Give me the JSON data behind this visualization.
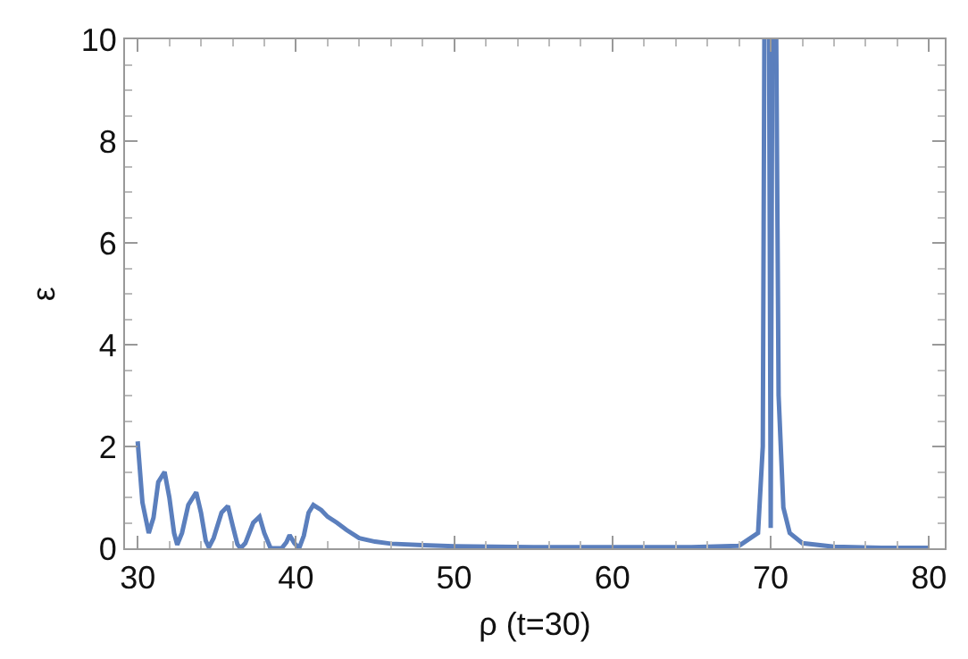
{
  "chart_data": {
    "type": "line",
    "xlabel": "ρ (t=30)",
    "ylabel": "ε",
    "x": [
      30.0,
      30.3,
      30.7,
      31.0,
      31.3,
      31.7,
      32.0,
      32.3,
      32.5,
      32.8,
      33.2,
      33.7,
      34.0,
      34.3,
      34.5,
      34.8,
      35.3,
      35.7,
      36.0,
      36.3,
      36.5,
      36.8,
      37.3,
      37.7,
      38.0,
      38.4,
      39.1,
      39.4,
      39.6,
      39.9,
      40.2,
      40.5,
      40.8,
      41.1,
      41.6,
      42.0,
      42.6,
      43.2,
      44,
      45,
      46,
      48,
      50,
      55,
      60,
      65,
      68,
      69.2,
      69.5,
      69.6,
      69.9,
      70.0,
      70.1,
      70.35,
      70.5,
      70.8,
      71.2,
      72,
      74,
      77,
      80
    ],
    "series": [
      {
        "color": "#5b7fbd",
        "values": [
          2.1,
          0.9,
          0.3,
          0.6,
          1.3,
          1.5,
          1.0,
          0.3,
          0.07,
          0.3,
          0.85,
          1.1,
          0.7,
          0.15,
          0.02,
          0.2,
          0.7,
          0.83,
          0.45,
          0.08,
          0,
          0.1,
          0.5,
          0.62,
          0.3,
          0,
          0,
          0.12,
          0.26,
          0.1,
          0,
          0.25,
          0.7,
          0.85,
          0.75,
          0.62,
          0.5,
          0.36,
          0.2,
          0.13,
          0.09,
          0.06,
          0.04,
          0.02,
          0.02,
          0.02,
          0.05,
          0.3,
          2,
          10,
          10,
          0.4,
          10,
          10,
          3,
          0.8,
          0.3,
          0.1,
          0.03,
          0.01,
          0.01
        ]
      }
    ],
    "xlim": [
      29.2,
      81
    ],
    "ylim": [
      0,
      10
    ],
    "xticks": [
      30,
      40,
      50,
      60,
      70,
      80
    ],
    "yticks": [
      0,
      2,
      4,
      6,
      8,
      10
    ],
    "grid": false,
    "marker": "none",
    "line_style": "solid"
  }
}
